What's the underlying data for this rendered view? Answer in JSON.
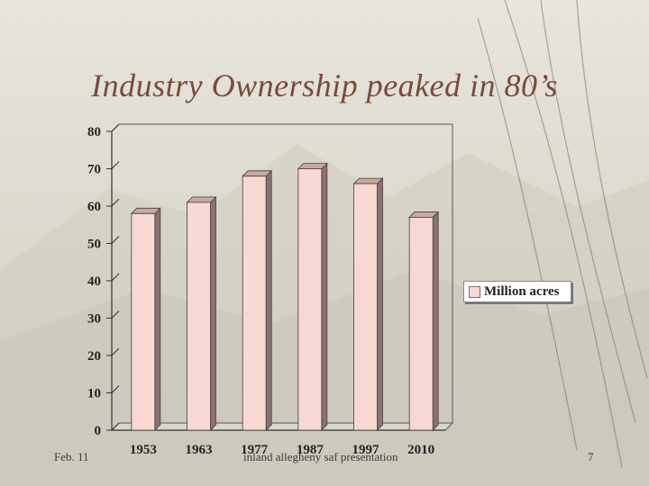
{
  "slide": {
    "title": "Industry Ownership peaked in 80’s",
    "footer_left": "Feb. 11",
    "footer_center": "inland allegheny saf presentation",
    "footer_right": "7"
  },
  "colors": {
    "bar_front": "#f7d9d3",
    "bar_side": "#8a7272",
    "bar_top": "#c9a9a4",
    "title": "#7a4a3a"
  },
  "chart_data": {
    "type": "bar",
    "categories": [
      "1953",
      "1963",
      "1977",
      "1987",
      "1997",
      "2010"
    ],
    "series": [
      {
        "name": "Million acres",
        "values": [
          58,
          61,
          68,
          70,
          66,
          57
        ]
      }
    ],
    "ylim": [
      0,
      80
    ],
    "yticks": [
      0,
      10,
      20,
      30,
      40,
      50,
      60,
      70,
      80
    ],
    "title": "",
    "xlabel": "",
    "ylabel": "",
    "grid": false,
    "legend": "right"
  }
}
